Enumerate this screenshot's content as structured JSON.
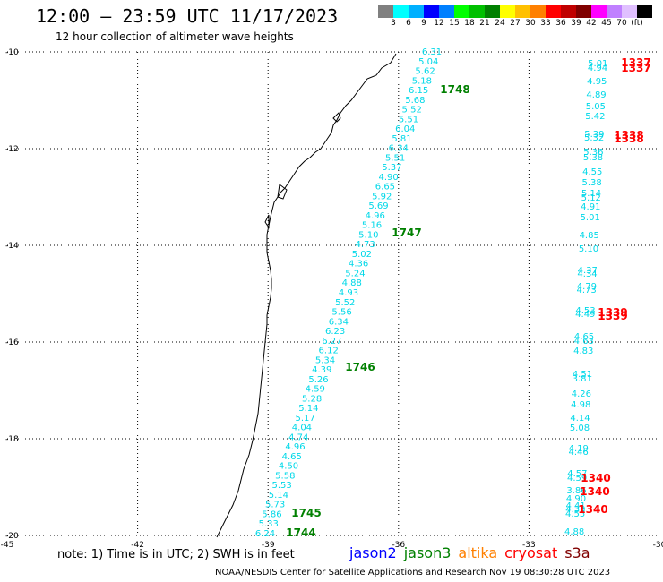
{
  "header": {
    "title": "12:00 – 23:59 UTC 11/17/2023",
    "subtitle": "12 hour collection of altimeter wave heights"
  },
  "colorbar": {
    "colors": [
      "#808080",
      "#00ffff",
      "#00b0ff",
      "#0000ff",
      "#0080ff",
      "#00ff00",
      "#00c000",
      "#008000",
      "#ffff00",
      "#ffc000",
      "#ff8000",
      "#ff0000",
      "#c00000",
      "#800000",
      "#ff00ff",
      "#c080ff",
      "#e0c0ff",
      "#000000"
    ],
    "labels": [
      "3",
      "6",
      "9",
      "12",
      "15",
      "18",
      "21",
      "24",
      "27",
      "30",
      "33",
      "36",
      "39",
      "42",
      "45",
      "70",
      "(ft)"
    ]
  },
  "map": {
    "lat_labels": [
      "-10",
      "-12",
      "-14",
      "-16",
      "-18",
      "-20"
    ],
    "lon_labels": [
      "-45",
      "-42",
      "-39",
      "-36",
      "-33",
      "-30"
    ],
    "track_color": "#00d8e8",
    "pass_label_color": "#008000",
    "cryosat_color": "#ff0000",
    "track1748": [
      "6.31",
      "5.04",
      "5.62",
      "5.18",
      "6.15",
      "5.68",
      "5.52",
      "5.51",
      "6.04",
      "5.81",
      "6.34",
      "5.51",
      "5.37",
      "4.90",
      "6.65",
      "5.92",
      "5.69",
      "4.96",
      "5.16",
      "5.10",
      "4.73",
      "5.02",
      "4.36",
      "5.24",
      "4.88",
      "4.93",
      "5.52",
      "5.56",
      "6.34",
      "6.23",
      "6.27",
      "6.12",
      "5.34",
      "4.39",
      "5.26",
      "4.59",
      "5.28",
      "5.14",
      "5.17",
      "4.04",
      "4.74",
      "4.96",
      "4.65",
      "4.50",
      "5.58",
      "5.53",
      "5.14",
      "5.73",
      "5.86",
      "5.33",
      "6.24"
    ],
    "track1337": [
      "5.01",
      "4.94",
      "4.95",
      "4.89",
      "5.05",
      "5.42",
      "5.39",
      "5.32",
      "5.36",
      "5.38",
      "4.55",
      "5.38",
      "5.14",
      "5.12",
      "4.91",
      "5.01",
      "4.85",
      "5.10",
      "4.37",
      "4.34",
      "4.79",
      "4.73",
      "4.53",
      "4.49",
      "4.65",
      "4.63",
      "4.83",
      "4.51",
      "3.81",
      "4.26",
      "4.98",
      "4.14",
      "5.08",
      "4.19",
      "4.46",
      "4.57",
      "4.59",
      "3.86",
      "4.90",
      "4.41",
      "4.33",
      "4.55",
      "4.88"
    ],
    "pass_labels": [
      "1748",
      "1747",
      "1746",
      "1745",
      "1744"
    ],
    "cryosat_labels": [
      "1337",
      "1337",
      "1338",
      "1338",
      "1339",
      "1339",
      "1340",
      "1340",
      "1340"
    ]
  },
  "footer": {
    "note": "note:  1) Time is in UTC;  2) SWH is in feet",
    "legend": [
      {
        "name": "jason2",
        "color": "#0000ff"
      },
      {
        "name": "jason3",
        "color": "#008000"
      },
      {
        "name": "altika",
        "color": "#ff8000"
      },
      {
        "name": "cryosat",
        "color": "#ff0000"
      },
      {
        "name": "s3a",
        "color": "#800000"
      }
    ],
    "credit": "NOAA/NESDIS Center for Satellite Applications and Research     Nov 19 08:30:28 UTC 2023"
  }
}
